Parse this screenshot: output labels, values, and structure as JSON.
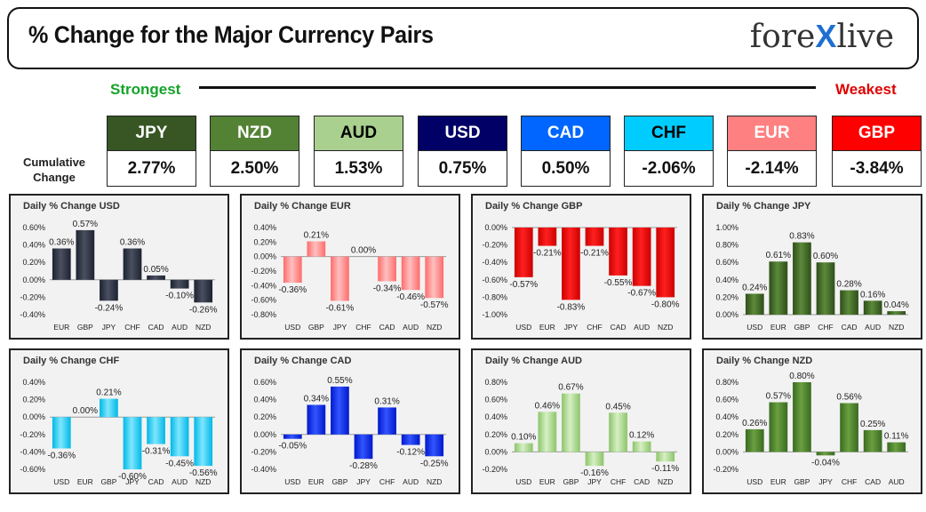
{
  "header": {
    "title": "% Change for the Major Currency Pairs",
    "logo_left": "fore",
    "logo_x": "X",
    "logo_right": "live"
  },
  "legend": {
    "strongest": "Strongest",
    "weakest": "Weakest"
  },
  "cumulative_label": "Cumulative Change",
  "currencies": [
    {
      "code": "JPY",
      "value": "2.77%",
      "bg": "#375623",
      "fg": "#ffffff"
    },
    {
      "code": "NZD",
      "value": "2.50%",
      "bg": "#548235",
      "fg": "#ffffff"
    },
    {
      "code": "AUD",
      "value": "1.53%",
      "bg": "#a9d08e",
      "fg": "#000000"
    },
    {
      "code": "USD",
      "value": "0.75%",
      "bg": "#000066",
      "fg": "#ffffff"
    },
    {
      "code": "CAD",
      "value": "0.50%",
      "bg": "#0066ff",
      "fg": "#ffffff"
    },
    {
      "code": "CHF",
      "value": "-2.06%",
      "bg": "#00ccff",
      "fg": "#000000"
    },
    {
      "code": "EUR",
      "value": "-2.14%",
      "bg": "#ff8080",
      "fg": "#ffffff"
    },
    {
      "code": "GBP",
      "value": "-3.84%",
      "bg": "#ff0000",
      "fg": "#ffffff"
    }
  ],
  "chart_data": [
    {
      "type": "bar",
      "title": "Daily % Change USD",
      "categories": [
        "EUR",
        "GBP",
        "JPY",
        "CHF",
        "CAD",
        "AUD",
        "NZD"
      ],
      "values": [
        0.36,
        0.57,
        -0.24,
        0.36,
        0.05,
        -0.1,
        -0.26
      ],
      "labels": [
        "0.36%",
        "0.57%",
        "-0.24%",
        "0.36%",
        "0.05%",
        "-0.10%",
        "-0.26%"
      ],
      "yticks": [
        0.6,
        0.4,
        0.2,
        0.0,
        -0.2,
        -0.4
      ],
      "ytick_labels": [
        "0.60%",
        "0.40%",
        "0.20%",
        "0.00%",
        "-0.20%",
        "-0.40%"
      ],
      "ylim": [
        -0.4,
        0.6
      ],
      "color_top": "#4a5060",
      "color_bottom": "#1c2230"
    },
    {
      "type": "bar",
      "title": "Daily % Change EUR",
      "categories": [
        "USD",
        "GBP",
        "JPY",
        "CHF",
        "CAD",
        "AUD",
        "NZD"
      ],
      "values": [
        -0.36,
        0.21,
        -0.61,
        0.0,
        -0.34,
        -0.46,
        -0.57
      ],
      "labels": [
        "-0.36%",
        "0.21%",
        "-0.61%",
        "0.00%",
        "-0.34%",
        "-0.46%",
        "-0.57%"
      ],
      "yticks": [
        0.4,
        0.2,
        0.0,
        -0.2,
        -0.4,
        -0.6,
        -0.8
      ],
      "ytick_labels": [
        "0.40%",
        "0.20%",
        "0.00%",
        "-0.20%",
        "-0.40%",
        "-0.60%",
        "-0.80%"
      ],
      "ylim": [
        -0.8,
        0.4
      ],
      "color_top": "#ffc0c0",
      "color_bottom": "#ff6b6b"
    },
    {
      "type": "bar",
      "title": "Daily % Change GBP",
      "categories": [
        "USD",
        "EUR",
        "JPY",
        "CHF",
        "CAD",
        "AUD",
        "NZD"
      ],
      "values": [
        -0.57,
        -0.21,
        -0.83,
        -0.21,
        -0.55,
        -0.67,
        -0.8
      ],
      "labels": [
        "-0.57%",
        "-0.21%",
        "-0.83%",
        "-0.21%",
        "-0.55%",
        "-0.67%",
        "-0.80%"
      ],
      "yticks": [
        0.0,
        -0.2,
        -0.4,
        -0.6,
        -0.8,
        -1.0
      ],
      "ytick_labels": [
        "0.00%",
        "-0.20%",
        "-0.40%",
        "-0.60%",
        "-0.80%",
        "-1.00%"
      ],
      "ylim": [
        -1.0,
        0.0
      ],
      "color_top": "#ff2020",
      "color_bottom": "#cc0000"
    },
    {
      "type": "bar",
      "title": "Daily % Change JPY",
      "categories": [
        "USD",
        "EUR",
        "GBP",
        "CHF",
        "CAD",
        "AUD",
        "NZD"
      ],
      "values": [
        0.24,
        0.61,
        0.83,
        0.6,
        0.28,
        0.16,
        0.04
      ],
      "labels": [
        "0.24%",
        "0.61%",
        "0.83%",
        "0.60%",
        "0.28%",
        "0.16%",
        "0.04%"
      ],
      "yticks": [
        1.0,
        0.8,
        0.6,
        0.4,
        0.2,
        0.0
      ],
      "ytick_labels": [
        "1.00%",
        "0.80%",
        "0.60%",
        "0.40%",
        "0.20%",
        "0.00%"
      ],
      "ylim": [
        0.0,
        1.0
      ],
      "color_top": "#5c8a3a",
      "color_bottom": "#2e4e1a"
    },
    {
      "type": "bar",
      "title": "Daily % Change CHF",
      "categories": [
        "USD",
        "EUR",
        "GBP",
        "JPY",
        "CAD",
        "AUD",
        "NZD"
      ],
      "values": [
        -0.36,
        0.0,
        0.21,
        -0.6,
        -0.31,
        -0.45,
        -0.56
      ],
      "labels": [
        "-0.36%",
        "0.00%",
        "0.21%",
        "-0.60%",
        "-0.31%",
        "-0.45%",
        "-0.56%"
      ],
      "yticks": [
        0.4,
        0.2,
        0.0,
        -0.2,
        -0.4,
        -0.6
      ],
      "ytick_labels": [
        "0.40%",
        "0.20%",
        "0.00%",
        "-0.20%",
        "-0.40%",
        "-0.60%"
      ],
      "ylim": [
        -0.6,
        0.4
      ],
      "color_top": "#7fe6ff",
      "color_bottom": "#00b8e6"
    },
    {
      "type": "bar",
      "title": "Daily % Change CAD",
      "categories": [
        "USD",
        "EUR",
        "GBP",
        "JPY",
        "CHF",
        "AUD",
        "NZD"
      ],
      "values": [
        -0.05,
        0.34,
        0.55,
        -0.28,
        0.31,
        -0.12,
        -0.25
      ],
      "labels": [
        "-0.05%",
        "0.34%",
        "0.55%",
        "-0.28%",
        "0.31%",
        "-0.12%",
        "-0.25%"
      ],
      "yticks": [
        0.6,
        0.4,
        0.2,
        0.0,
        -0.2,
        -0.4
      ],
      "ytick_labels": [
        "0.60%",
        "0.40%",
        "0.20%",
        "0.00%",
        "-0.20%",
        "-0.40%"
      ],
      "ylim": [
        -0.4,
        0.6
      ],
      "color_top": "#3355ff",
      "color_bottom": "#0018cc"
    },
    {
      "type": "bar",
      "title": "Daily % Change AUD",
      "categories": [
        "USD",
        "EUR",
        "GBP",
        "JPY",
        "CHF",
        "CAD",
        "NZD"
      ],
      "values": [
        0.1,
        0.46,
        0.67,
        -0.16,
        0.45,
        0.12,
        -0.11
      ],
      "labels": [
        "0.10%",
        "0.46%",
        "0.67%",
        "-0.16%",
        "0.45%",
        "0.12%",
        "-0.11%"
      ],
      "yticks": [
        0.8,
        0.6,
        0.4,
        0.2,
        0.0,
        -0.2
      ],
      "ytick_labels": [
        "0.80%",
        "0.60%",
        "0.40%",
        "0.20%",
        "0.00%",
        "-0.20%"
      ],
      "ylim": [
        -0.2,
        0.8
      ],
      "color_top": "#d6f0c4",
      "color_bottom": "#8cc46a"
    },
    {
      "type": "bar",
      "title": "Daily % Change NZD",
      "categories": [
        "USD",
        "EUR",
        "GBP",
        "JPY",
        "CHF",
        "CAD",
        "AUD"
      ],
      "values": [
        0.26,
        0.57,
        0.8,
        -0.04,
        0.56,
        0.25,
        0.11
      ],
      "labels": [
        "0.26%",
        "0.57%",
        "0.80%",
        "-0.04%",
        "0.56%",
        "0.25%",
        "0.11%"
      ],
      "yticks": [
        0.8,
        0.6,
        0.4,
        0.2,
        0.0,
        -0.2
      ],
      "ytick_labels": [
        "0.80%",
        "0.60%",
        "0.40%",
        "0.20%",
        "0.00%",
        "-0.20%"
      ],
      "ylim": [
        -0.2,
        0.8
      ],
      "color_top": "#6aa040",
      "color_bottom": "#3a6a20"
    }
  ]
}
